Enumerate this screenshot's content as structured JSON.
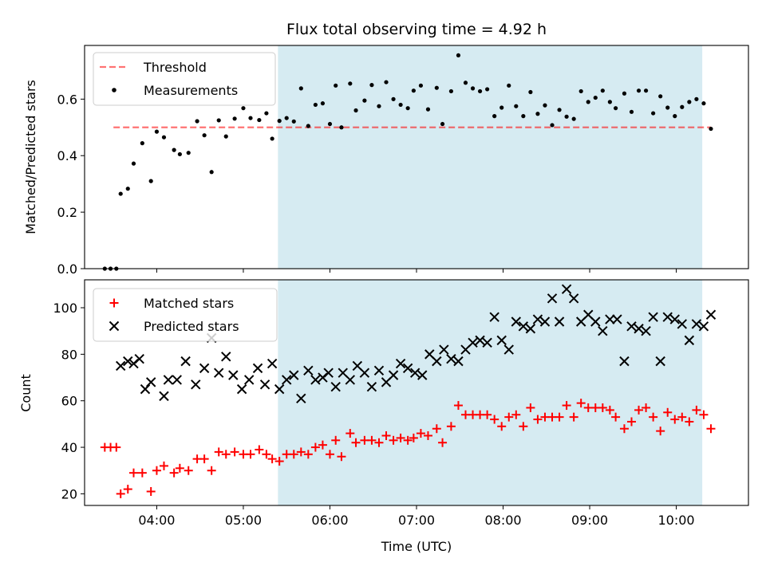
{
  "title": "Flux total observing time = 4.92 h",
  "colors": {
    "highlight": "#add8e6",
    "threshold": "#ff0000",
    "measurements": "#000000",
    "matched": "#ff0000",
    "predicted": "#000000"
  },
  "chart_data": [
    {
      "type": "scatter",
      "panel": "top",
      "ylabel": "Matched/Predicted stars",
      "ylim": [
        0,
        0.79
      ],
      "yticks": [
        "0.0",
        "0.2",
        "0.4",
        "0.6"
      ],
      "xlim": [
        "03:10",
        "10:50"
      ],
      "highlight_span": [
        "05:24",
        "10:18"
      ],
      "legend": {
        "position": "upper-left",
        "entries": [
          "Threshold",
          "Measurements"
        ]
      },
      "threshold": {
        "name": "Threshold",
        "value": 0.5,
        "x": [
          "03:30",
          "10:24"
        ],
        "style": "dashed"
      },
      "series": [
        {
          "name": "Measurements",
          "marker": "dot",
          "points": [
            [
              "03:24",
              0.0
            ],
            [
              "03:28",
              0.0
            ],
            [
              "03:32",
              0.0
            ],
            [
              "03:35",
              0.265
            ],
            [
              "03:40",
              0.283
            ],
            [
              "03:44",
              0.372
            ],
            [
              "03:50",
              0.444
            ],
            [
              "03:56",
              0.31
            ],
            [
              "04:00",
              0.485
            ],
            [
              "04:05",
              0.465
            ],
            [
              "04:12",
              0.42
            ],
            [
              "04:16",
              0.405
            ],
            [
              "04:22",
              0.41
            ],
            [
              "04:28",
              0.522
            ],
            [
              "04:33",
              0.472
            ],
            [
              "04:38",
              0.342
            ],
            [
              "04:43",
              0.525
            ],
            [
              "04:48",
              0.468
            ],
            [
              "04:54",
              0.531
            ],
            [
              "05:00",
              0.568
            ],
            [
              "05:05",
              0.533
            ],
            [
              "05:11",
              0.526
            ],
            [
              "05:16",
              0.55
            ],
            [
              "05:20",
              0.46
            ],
            [
              "05:25",
              0.523
            ],
            [
              "05:30",
              0.533
            ],
            [
              "05:35",
              0.521
            ],
            [
              "05:40",
              0.638
            ],
            [
              "05:45",
              0.505
            ],
            [
              "05:50",
              0.58
            ],
            [
              "05:55",
              0.585
            ],
            [
              "06:00",
              0.512
            ],
            [
              "06:04",
              0.648
            ],
            [
              "06:08",
              0.5
            ],
            [
              "06:14",
              0.655
            ],
            [
              "06:18",
              0.56
            ],
            [
              "06:24",
              0.595
            ],
            [
              "06:29",
              0.65
            ],
            [
              "06:34",
              0.575
            ],
            [
              "06:39",
              0.66
            ],
            [
              "06:44",
              0.6
            ],
            [
              "06:49",
              0.58
            ],
            [
              "06:54",
              0.568
            ],
            [
              "06:58",
              0.63
            ],
            [
              "07:03",
              0.648
            ],
            [
              "07:08",
              0.564
            ],
            [
              "07:14",
              0.64
            ],
            [
              "07:18",
              0.512
            ],
            [
              "07:24",
              0.628
            ],
            [
              "07:29",
              0.755
            ],
            [
              "07:34",
              0.658
            ],
            [
              "07:39",
              0.638
            ],
            [
              "07:44",
              0.628
            ],
            [
              "07:49",
              0.635
            ],
            [
              "07:54",
              0.54
            ],
            [
              "07:59",
              0.57
            ],
            [
              "08:04",
              0.648
            ],
            [
              "08:09",
              0.575
            ],
            [
              "08:14",
              0.54
            ],
            [
              "08:19",
              0.625
            ],
            [
              "08:24",
              0.548
            ],
            [
              "08:29",
              0.578
            ],
            [
              "08:34",
              0.508
            ],
            [
              "08:39",
              0.562
            ],
            [
              "08:44",
              0.538
            ],
            [
              "08:49",
              0.53
            ],
            [
              "08:54",
              0.628
            ],
            [
              "08:59",
              0.59
            ],
            [
              "09:04",
              0.605
            ],
            [
              "09:09",
              0.63
            ],
            [
              "09:14",
              0.59
            ],
            [
              "09:18",
              0.568
            ],
            [
              "09:24",
              0.62
            ],
            [
              "09:29",
              0.555
            ],
            [
              "09:34",
              0.63
            ],
            [
              "09:39",
              0.63
            ],
            [
              "09:44",
              0.55
            ],
            [
              "09:49",
              0.61
            ],
            [
              "09:54",
              0.57
            ],
            [
              "09:59",
              0.54
            ],
            [
              "10:04",
              0.572
            ],
            [
              "10:09",
              0.59
            ],
            [
              "10:14",
              0.6
            ],
            [
              "10:19",
              0.585
            ],
            [
              "10:24",
              0.495
            ]
          ]
        }
      ]
    },
    {
      "type": "scatter",
      "panel": "bottom",
      "xlabel": "Time (UTC)",
      "ylabel": "Count",
      "ylim": [
        15,
        112
      ],
      "yticks": [
        "20",
        "40",
        "60",
        "80",
        "100"
      ],
      "xlim": [
        "03:10",
        "10:50"
      ],
      "xticks": [
        "04:00",
        "05:00",
        "06:00",
        "07:00",
        "08:00",
        "09:00",
        "10:00"
      ],
      "highlight_span": [
        "05:24",
        "10:18"
      ],
      "legend": {
        "position": "upper-left",
        "entries": [
          "Matched stars",
          "Predicted stars"
        ]
      },
      "series": [
        {
          "name": "Matched stars",
          "marker": "plus",
          "points": [
            [
              "03:24",
              40
            ],
            [
              "03:28",
              40
            ],
            [
              "03:32",
              40
            ],
            [
              "03:35",
              20
            ],
            [
              "03:40",
              22
            ],
            [
              "03:44",
              29
            ],
            [
              "03:50",
              29
            ],
            [
              "03:56",
              21
            ],
            [
              "04:00",
              30
            ],
            [
              "04:05",
              32
            ],
            [
              "04:12",
              29
            ],
            [
              "04:16",
              31
            ],
            [
              "04:22",
              30
            ],
            [
              "04:28",
              35
            ],
            [
              "04:33",
              35
            ],
            [
              "04:38",
              30
            ],
            [
              "04:43",
              38
            ],
            [
              "04:48",
              37
            ],
            [
              "04:54",
              38
            ],
            [
              "05:00",
              37
            ],
            [
              "05:05",
              37
            ],
            [
              "05:11",
              39
            ],
            [
              "05:16",
              37
            ],
            [
              "05:20",
              35
            ],
            [
              "05:25",
              34
            ],
            [
              "05:30",
              37
            ],
            [
              "05:35",
              37
            ],
            [
              "05:40",
              38
            ],
            [
              "05:45",
              37
            ],
            [
              "05:50",
              40
            ],
            [
              "05:55",
              41
            ],
            [
              "06:00",
              37
            ],
            [
              "06:04",
              43
            ],
            [
              "06:08",
              36
            ],
            [
              "06:14",
              46
            ],
            [
              "06:18",
              42
            ],
            [
              "06:24",
              43
            ],
            [
              "06:29",
              43
            ],
            [
              "06:34",
              42
            ],
            [
              "06:39",
              45
            ],
            [
              "06:44",
              43
            ],
            [
              "06:49",
              44
            ],
            [
              "06:54",
              43
            ],
            [
              "06:58",
              44
            ],
            [
              "07:03",
              46
            ],
            [
              "07:08",
              45
            ],
            [
              "07:14",
              48
            ],
            [
              "07:18",
              42
            ],
            [
              "07:24",
              49
            ],
            [
              "07:29",
              58
            ],
            [
              "07:34",
              54
            ],
            [
              "07:39",
              54
            ],
            [
              "07:44",
              54
            ],
            [
              "07:49",
              54
            ],
            [
              "07:54",
              52
            ],
            [
              "07:59",
              49
            ],
            [
              "08:04",
              53
            ],
            [
              "08:09",
              54
            ],
            [
              "08:14",
              49
            ],
            [
              "08:19",
              57
            ],
            [
              "08:24",
              52
            ],
            [
              "08:29",
              53
            ],
            [
              "08:34",
              53
            ],
            [
              "08:39",
              53
            ],
            [
              "08:44",
              58
            ],
            [
              "08:49",
              53
            ],
            [
              "08:54",
              59
            ],
            [
              "08:59",
              57
            ],
            [
              "09:04",
              57
            ],
            [
              "09:09",
              57
            ],
            [
              "09:14",
              56
            ],
            [
              "09:18",
              53
            ],
            [
              "09:24",
              48
            ],
            [
              "09:29",
              51
            ],
            [
              "09:34",
              56
            ],
            [
              "09:39",
              57
            ],
            [
              "09:44",
              53
            ],
            [
              "09:49",
              47
            ],
            [
              "09:54",
              55
            ],
            [
              "09:59",
              52
            ],
            [
              "10:04",
              53
            ],
            [
              "10:09",
              51
            ],
            [
              "10:14",
              56
            ],
            [
              "10:19",
              54
            ],
            [
              "10:24",
              48
            ]
          ]
        },
        {
          "name": "Predicted stars",
          "marker": "x",
          "points": [
            [
              "03:35",
              75
            ],
            [
              "03:40",
              77
            ],
            [
              "03:44",
              76
            ],
            [
              "03:48",
              78
            ],
            [
              "03:52",
              65
            ],
            [
              "03:56",
              68
            ],
            [
              "04:05",
              62
            ],
            [
              "04:08",
              69
            ],
            [
              "04:14",
              69
            ],
            [
              "04:20",
              77
            ],
            [
              "04:27",
              67
            ],
            [
              "04:33",
              74
            ],
            [
              "04:38",
              87
            ],
            [
              "04:43",
              72
            ],
            [
              "04:48",
              79
            ],
            [
              "04:53",
              71
            ],
            [
              "04:59",
              65
            ],
            [
              "05:04",
              69
            ],
            [
              "05:10",
              74
            ],
            [
              "05:15",
              67
            ],
            [
              "05:20",
              76
            ],
            [
              "05:25",
              65
            ],
            [
              "05:30",
              69
            ],
            [
              "05:35",
              71
            ],
            [
              "05:40",
              61
            ],
            [
              "05:45",
              73
            ],
            [
              "05:50",
              69
            ],
            [
              "05:55",
              70
            ],
            [
              "05:59",
              72
            ],
            [
              "06:04",
              66
            ],
            [
              "06:09",
              72
            ],
            [
              "06:14",
              69
            ],
            [
              "06:19",
              75
            ],
            [
              "06:24",
              72
            ],
            [
              "06:29",
              66
            ],
            [
              "06:34",
              73
            ],
            [
              "06:39",
              68
            ],
            [
              "06:44",
              71
            ],
            [
              "06:49",
              76
            ],
            [
              "06:54",
              74
            ],
            [
              "06:59",
              72
            ],
            [
              "07:04",
              71
            ],
            [
              "07:09",
              80
            ],
            [
              "07:14",
              77
            ],
            [
              "07:19",
              82
            ],
            [
              "07:24",
              78
            ],
            [
              "07:29",
              77
            ],
            [
              "07:34",
              82
            ],
            [
              "07:39",
              85
            ],
            [
              "07:44",
              86
            ],
            [
              "07:49",
              85
            ],
            [
              "07:54",
              96
            ],
            [
              "07:59",
              86
            ],
            [
              "08:04",
              82
            ],
            [
              "08:09",
              94
            ],
            [
              "08:14",
              92
            ],
            [
              "08:19",
              91
            ],
            [
              "08:24",
              95
            ],
            [
              "08:29",
              94
            ],
            [
              "08:34",
              104
            ],
            [
              "08:39",
              94
            ],
            [
              "08:44",
              108
            ],
            [
              "08:49",
              104
            ],
            [
              "08:54",
              94
            ],
            [
              "08:59",
              97
            ],
            [
              "09:04",
              94
            ],
            [
              "09:09",
              90
            ],
            [
              "09:14",
              95
            ],
            [
              "09:19",
              95
            ],
            [
              "09:24",
              77
            ],
            [
              "09:29",
              92
            ],
            [
              "09:34",
              91
            ],
            [
              "09:39",
              90
            ],
            [
              "09:44",
              96
            ],
            [
              "09:49",
              77
            ],
            [
              "09:54",
              96
            ],
            [
              "09:59",
              95
            ],
            [
              "10:04",
              93
            ],
            [
              "10:09",
              86
            ],
            [
              "10:14",
              93
            ],
            [
              "10:19",
              92
            ],
            [
              "10:24",
              97
            ]
          ]
        }
      ]
    }
  ]
}
